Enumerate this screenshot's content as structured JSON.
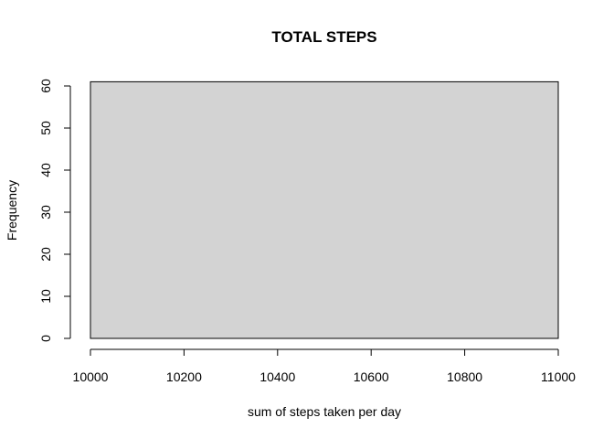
{
  "chart_data": {
    "type": "bar",
    "subtype": "histogram",
    "title": "TOTAL STEPS",
    "xlabel": "sum of steps taken per day",
    "ylabel": "Frequency",
    "xlim": [
      10000,
      11000
    ],
    "ylim": [
      0,
      60
    ],
    "x_ticks": [
      10000,
      10200,
      10400,
      10600,
      10800,
      11000
    ],
    "y_ticks": [
      0,
      10,
      20,
      30,
      40,
      50,
      60
    ],
    "bins": [
      {
        "x0": 10000,
        "x1": 11000,
        "value": 61
      }
    ],
    "bar_color": "#d3d3d3",
    "grid": false,
    "legend": "none"
  }
}
